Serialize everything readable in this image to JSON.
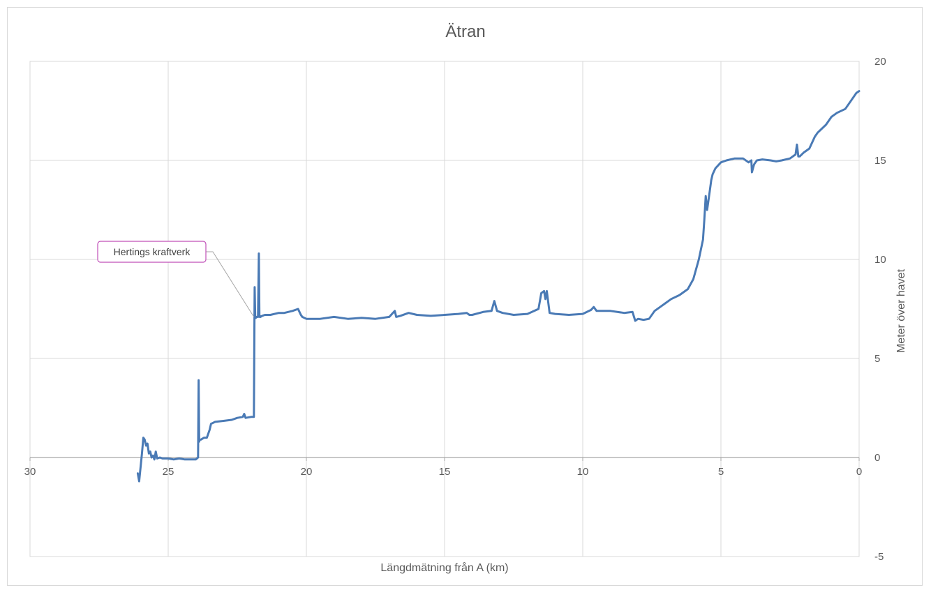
{
  "chart_data": {
    "type": "line",
    "title": "Ätran",
    "xlabel": "Längdmätning från A (km)",
    "ylabel": "Meter över havet",
    "xlim": [
      30,
      0
    ],
    "x_reversed": true,
    "ylim": [
      -5,
      20
    ],
    "x_ticks": [
      "30",
      "25",
      "20",
      "15",
      "10",
      "5",
      "0"
    ],
    "y_ticks": [
      "20",
      "15",
      "10",
      "5",
      "0",
      "-5"
    ],
    "y_axis_position": "right",
    "grid": true,
    "legend": "none",
    "line_color": "#4a7ab5",
    "annotations": [
      {
        "text": "Hertings kraftverk",
        "x": 21.9,
        "y": 7.1,
        "border_color": "#c04fb8"
      }
    ],
    "series": [
      {
        "x": [
          26.1,
          26.05,
          26.0,
          25.95,
          25.9,
          25.85,
          25.8,
          25.75,
          25.7,
          25.65,
          25.6,
          25.55,
          25.5,
          25.45,
          25.4,
          25.3,
          25.2,
          25.0,
          24.8,
          24.6,
          24.4,
          24.2,
          24.0,
          23.92,
          23.9,
          23.88,
          23.86,
          23.82,
          23.7,
          23.6,
          23.5,
          23.45,
          23.3,
          23.0,
          22.7,
          22.5,
          22.3,
          22.25,
          22.2,
          22.0,
          21.9,
          21.88,
          21.87,
          21.85,
          21.83,
          21.8,
          21.75,
          21.72,
          21.7,
          21.68,
          21.66,
          21.6,
          21.5,
          21.3,
          21.0,
          20.8,
          20.5,
          20.3,
          20.2,
          20.15,
          20.0,
          19.5,
          19.0,
          18.5,
          18.0,
          17.5,
          17.0,
          16.8,
          16.75,
          16.6,
          16.3,
          16.0,
          15.5,
          15.0,
          14.5,
          14.2,
          14.1,
          14.0,
          13.6,
          13.3,
          13.2,
          13.1,
          12.9,
          12.5,
          12.0,
          11.6,
          11.5,
          11.4,
          11.35,
          11.3,
          11.2,
          11.0,
          10.5,
          10.0,
          9.7,
          9.6,
          9.5,
          9.0,
          8.5,
          8.2,
          8.1,
          8.0,
          7.8,
          7.6,
          7.4,
          7.2,
          7.0,
          6.8,
          6.5,
          6.2,
          6.0,
          5.8,
          5.65,
          5.6,
          5.55,
          5.5,
          5.45,
          5.4,
          5.35,
          5.3,
          5.2,
          5.0,
          4.8,
          4.5,
          4.2,
          4.0,
          3.9,
          3.88,
          3.8,
          3.7,
          3.5,
          3.2,
          3.0,
          2.8,
          2.5,
          2.3,
          2.25,
          2.2,
          2.15,
          2.0,
          1.8,
          1.6,
          1.5,
          1.2,
          1.0,
          0.8,
          0.5,
          0.3,
          0.1,
          0.0
        ],
        "y": [
          -0.8,
          -1.2,
          -0.5,
          0.2,
          1.0,
          0.9,
          0.6,
          0.7,
          0.2,
          0.3,
          0.0,
          0.1,
          -0.1,
          0.3,
          -0.05,
          0.0,
          -0.05,
          -0.05,
          -0.1,
          -0.05,
          -0.1,
          -0.1,
          -0.1,
          0.0,
          3.9,
          0.8,
          0.9,
          0.9,
          1.0,
          1.0,
          1.4,
          1.7,
          1.8,
          1.85,
          1.9,
          2.0,
          2.05,
          2.2,
          2.0,
          2.05,
          2.05,
          7.1,
          8.6,
          7.1,
          7.05,
          7.1,
          7.1,
          10.3,
          7.1,
          7.15,
          7.1,
          7.15,
          7.2,
          7.2,
          7.3,
          7.3,
          7.4,
          7.5,
          7.2,
          7.1,
          7.0,
          7.0,
          7.1,
          7.0,
          7.05,
          7.0,
          7.1,
          7.4,
          7.1,
          7.15,
          7.3,
          7.2,
          7.15,
          7.2,
          7.25,
          7.3,
          7.2,
          7.2,
          7.35,
          7.4,
          7.9,
          7.4,
          7.3,
          7.2,
          7.25,
          7.5,
          8.3,
          8.4,
          8.0,
          8.4,
          7.3,
          7.25,
          7.2,
          7.25,
          7.45,
          7.6,
          7.4,
          7.4,
          7.3,
          7.35,
          6.9,
          7.0,
          6.95,
          7.0,
          7.4,
          7.6,
          7.8,
          8.0,
          8.2,
          8.5,
          9.0,
          10.0,
          11.0,
          12.0,
          13.2,
          12.5,
          13.0,
          13.5,
          14.0,
          14.3,
          14.6,
          14.9,
          15.0,
          15.1,
          15.1,
          14.9,
          15.0,
          14.4,
          14.8,
          15.0,
          15.05,
          15.0,
          14.95,
          15.0,
          15.1,
          15.3,
          15.8,
          15.2,
          15.2,
          15.4,
          15.6,
          16.2,
          16.4,
          16.8,
          17.2,
          17.4,
          17.6,
          18.0,
          18.4,
          18.5
        ]
      }
    ]
  }
}
